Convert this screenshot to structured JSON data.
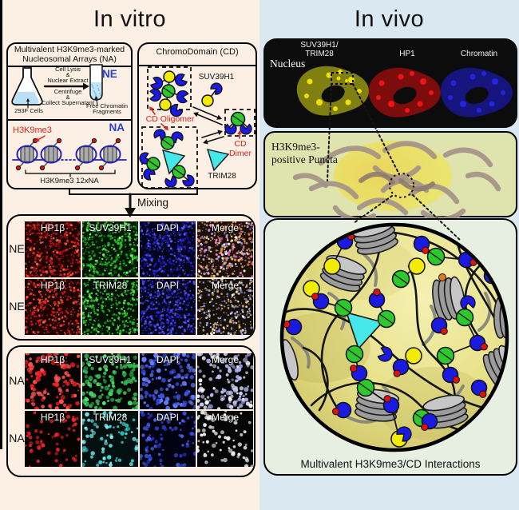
{
  "palette": {
    "cd_blue": "#1a1ae0",
    "green": "#2cc82c",
    "yellow": "#f2ec00",
    "cyan": "#45e8e8",
    "red_mark": "#dd1111",
    "dna_blue": "#2222cc",
    "nucleosome_grey": "#9c9c9c",
    "accent_red_text": "#e62222",
    "accent_blue_text": "#2540d8"
  },
  "left_panel": {
    "title": "In vitro",
    "na_box": {
      "title1": "Multivalent H3K9me3-marked",
      "title2": "Nucleosomal Arrays (NA)",
      "step_top1": "Cell Lysis",
      "step_top2": "&",
      "step_top3": "Nuclear Extract",
      "step_bot1": "Centrifuge",
      "step_bot2": "&",
      "step_bot3": "Collect Supernatant",
      "flask_label": "293F Cells",
      "ne_label": "NE",
      "tube_label1": "Free Chromatin",
      "tube_label2": "Fragments",
      "mark_label": "H3K9me3",
      "na_label": "NA",
      "array_label": "H3K9me3 12xNA"
    },
    "cd_box": {
      "title": "ChromoDomain (CD)",
      "suv39h1_label": "SUV39H1",
      "oligomer_label": "CD Oligomer",
      "dimer_label": "CD Dimer",
      "trim28_label": "TRIM28"
    },
    "mixing_label": "Mixing",
    "micrograph_panels": [
      {
        "id": "NE",
        "rows": [
          {
            "row_label": "NE",
            "tiles": [
              {
                "label": "HP1β",
                "bg": "#1e0202",
                "colors": [
                  "#e81414",
                  "#ff6a4a",
                  "#b00808"
                ],
                "count": 420,
                "rmin": 0.5,
                "rmax": 1.7
              },
              {
                "label": "SUV39H1",
                "bg": "#021502",
                "colors": [
                  "#1fd11f",
                  "#66ff66",
                  "#0f9f0f"
                ],
                "count": 420,
                "rmin": 0.5,
                "rmax": 1.7
              },
              {
                "label": "DAPI",
                "bg": "#04041c",
                "colors": [
                  "#2a2aee",
                  "#6666ff",
                  "#1515b0"
                ],
                "count": 420,
                "rmin": 0.5,
                "rmax": 1.7
              },
              {
                "label": "Merge",
                "bg": "#1c1006",
                "colors": [
                  "#ff8c3a",
                  "#ff6ed0",
                  "#ffffff",
                  "#c0a8ff",
                  "#ffd27a"
                ],
                "count": 430,
                "rmin": 0.5,
                "rmax": 1.7
              }
            ]
          },
          {
            "row_label": "NE",
            "tiles": [
              {
                "label": "HP1β",
                "bg": "#1c0202",
                "colors": [
                  "#e81414",
                  "#ff5a3a"
                ],
                "count": 380,
                "rmin": 0.5,
                "rmax": 1.7
              },
              {
                "label": "TRIM28",
                "bg": "#021202",
                "colors": [
                  "#1fc81f",
                  "#55ee55"
                ],
                "count": 360,
                "rmin": 0.5,
                "rmax": 1.7
              },
              {
                "label": "DAPI",
                "bg": "#04041c",
                "colors": [
                  "#2a2aee",
                  "#5d5dff"
                ],
                "count": 400,
                "rmin": 0.5,
                "rmax": 1.7
              },
              {
                "label": "Merge",
                "bg": "#15100a",
                "colors": [
                  "#ffffff",
                  "#ffb060",
                  "#a0a0ff",
                  "#ffe0a0"
                ],
                "count": 330,
                "rmin": 0.5,
                "rmax": 1.6
              }
            ]
          }
        ]
      },
      {
        "id": "NA",
        "rows": [
          {
            "row_label": "NA",
            "tiles": [
              {
                "label": "HP1β",
                "bg": "#070202",
                "colors": [
                  "#ee2222",
                  "#ff5555"
                ],
                "count": 120,
                "rmin": 1.2,
                "rmax": 3.2
              },
              {
                "label": "SUV39H1",
                "bg": "#020702",
                "colors": [
                  "#2fbf4f",
                  "#55e575"
                ],
                "count": 130,
                "rmin": 1.2,
                "rmax": 3.2
              },
              {
                "label": "DAPI",
                "bg": "#020210",
                "colors": [
                  "#3a55e8",
                  "#6a80ff"
                ],
                "count": 140,
                "rmin": 1.2,
                "rmax": 3.2
              },
              {
                "label": "Merge",
                "bg": "#050508",
                "colors": [
                  "#ccccf5",
                  "#ffffff",
                  "#aab0ee"
                ],
                "count": 130,
                "rmin": 1.2,
                "rmax": 3.2
              }
            ]
          },
          {
            "row_label": "NA",
            "tiles": [
              {
                "label": "HP1β",
                "bg": "#060202",
                "colors": [
                  "#ee2525"
                ],
                "count": 60,
                "rmin": 1.2,
                "rmax": 2.8
              },
              {
                "label": "TRIM28",
                "bg": "#021010",
                "colors": [
                  "#35dede",
                  "#7df0f0"
                ],
                "count": 80,
                "rmin": 1.2,
                "rmax": 2.8
              },
              {
                "label": "DAPI",
                "bg": "#020212",
                "colors": [
                  "#2a3fd0",
                  "#4a60e8"
                ],
                "count": 90,
                "rmin": 1.2,
                "rmax": 2.8
              },
              {
                "label": "Merge",
                "bg": "#050505",
                "colors": [
                  "#f2f2f2",
                  "#ffffff"
                ],
                "count": 70,
                "rmin": 1.2,
                "rmax": 2.8
              }
            ]
          }
        ]
      }
    ]
  },
  "right_panel": {
    "title": "In vivo",
    "nucleus_box": {
      "nucleus_label": "Nucleus",
      "col1_label1": "SUV39H1/",
      "col1_label2": "TRIM28",
      "col2_label": "HP1",
      "col3_label": "Chromatin",
      "colors": {
        "suv_body": "#7f7f12",
        "suv_dots": "#f0e000",
        "hp1_body": "#7d0d0d",
        "hp1_dots": "#ee1515",
        "chr_body": "#15157d",
        "chr_dots": "#2525e0"
      }
    },
    "puncta_box": {
      "label1": "H3K9me3-",
      "label2": "positive Puncta"
    },
    "interaction_box": {
      "caption": "Multivalent H3K9me3/CD Interactions"
    }
  }
}
